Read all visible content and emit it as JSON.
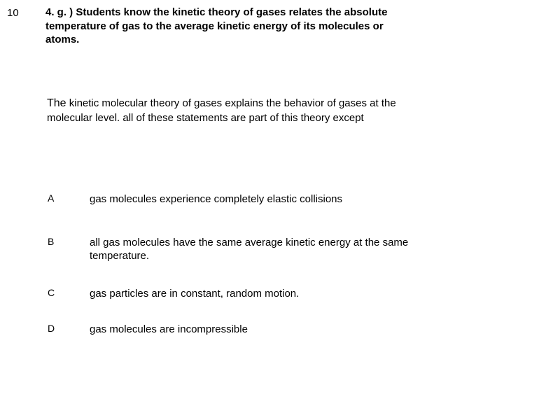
{
  "page_number": "10",
  "standard": "4. g. ) Students know the kinetic theory of gases relates the absolute temperature of gas to the average kinetic energy of its molecules or atoms.",
  "question_lead": "The",
  "question_rest": " kinetic molecular theory of gases explains the behavior of gases at the molecular level. all of these statements are part of this theory except",
  "options": {
    "a": {
      "letter": "A",
      "text": "gas molecules experience completely elastic collisions"
    },
    "b": {
      "letter": "B",
      "text": "all gas molecules have the same average kinetic energy at the same temperature."
    },
    "c": {
      "letter": "C",
      "text": "gas particles are in constant, random motion."
    },
    "d": {
      "letter": "D",
      "text": "gas molecules are incompressible"
    }
  },
  "colors": {
    "background": "#ffffff",
    "text": "#000000"
  },
  "typography": {
    "font_family": "Arial",
    "heading_fontsize": 15,
    "heading_weight": "bold",
    "body_fontsize": 15,
    "option_letter_fontsize": 14
  }
}
